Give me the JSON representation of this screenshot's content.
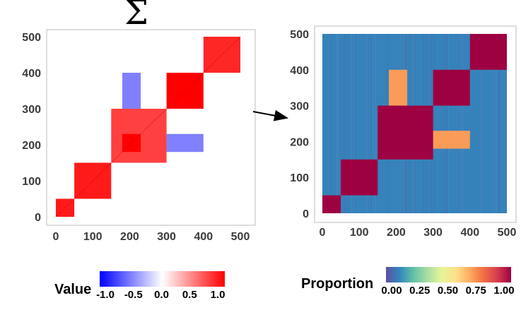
{
  "symbol": "Σ",
  "chart_data": [
    {
      "type": "heatmap",
      "x_ticks": [
        "0",
        "100",
        "200",
        "300",
        "400",
        "500"
      ],
      "y_ticks": [
        "0",
        "100",
        "200",
        "300",
        "400",
        "500"
      ],
      "xlim": [
        0,
        500
      ],
      "ylim": [
        0,
        500
      ],
      "diagonal_blocks": [
        {
          "range": [
            0,
            50
          ],
          "value": 0.9
        },
        {
          "range": [
            50,
            150
          ],
          "value": 0.9
        },
        {
          "range": [
            150,
            300
          ],
          "value": 0.75
        },
        {
          "range": [
            180,
            230
          ],
          "value": 1.0
        },
        {
          "range": [
            300,
            400
          ],
          "value": 1.0
        },
        {
          "range": [
            400,
            500
          ],
          "value": 0.85
        }
      ],
      "off_diagonal_blocks": [
        {
          "x": [
            180,
            230
          ],
          "y": [
            300,
            400
          ],
          "value": -0.5
        },
        {
          "x": [
            300,
            400
          ],
          "y": [
            180,
            230
          ],
          "value": -0.5
        }
      ],
      "legend": {
        "title": "Value",
        "ticks": [
          "-1.0",
          "-0.5",
          "0.0",
          "0.5",
          "1.0"
        ],
        "colors": [
          "#0000ff",
          "#ffffff",
          "#ff0000"
        ]
      }
    },
    {
      "type": "heatmap",
      "x_ticks": [
        "0",
        "100",
        "200",
        "300",
        "400",
        "500"
      ],
      "y_ticks": [
        "0",
        "100",
        "200",
        "300",
        "400",
        "500"
      ],
      "xlim": [
        0,
        500
      ],
      "ylim": [
        0,
        500
      ],
      "background_value": 0.1,
      "diagonal_blocks": [
        {
          "range": [
            0,
            50
          ],
          "value": 1.0
        },
        {
          "range": [
            50,
            150
          ],
          "value": 1.0
        },
        {
          "range": [
            150,
            300
          ],
          "value": 1.0
        },
        {
          "range": [
            300,
            400
          ],
          "value": 1.0
        },
        {
          "range": [
            400,
            500
          ],
          "value": 1.0
        }
      ],
      "off_diagonal_blocks": [
        {
          "x": [
            180,
            230
          ],
          "y": [
            300,
            400
          ],
          "value": 0.7
        },
        {
          "x": [
            300,
            400
          ],
          "y": [
            180,
            230
          ],
          "value": 0.7
        }
      ],
      "legend": {
        "title": "Proportion",
        "ticks": [
          "0.00",
          "0.25",
          "0.50",
          "0.75",
          "1.00"
        ],
        "colors": [
          "#5e4fa2",
          "#3288bd",
          "#66c2a5",
          "#abdda4",
          "#e6f598",
          "#fee08b",
          "#fdae61",
          "#f46d43",
          "#d53e4f",
          "#9e0142"
        ]
      }
    }
  ]
}
